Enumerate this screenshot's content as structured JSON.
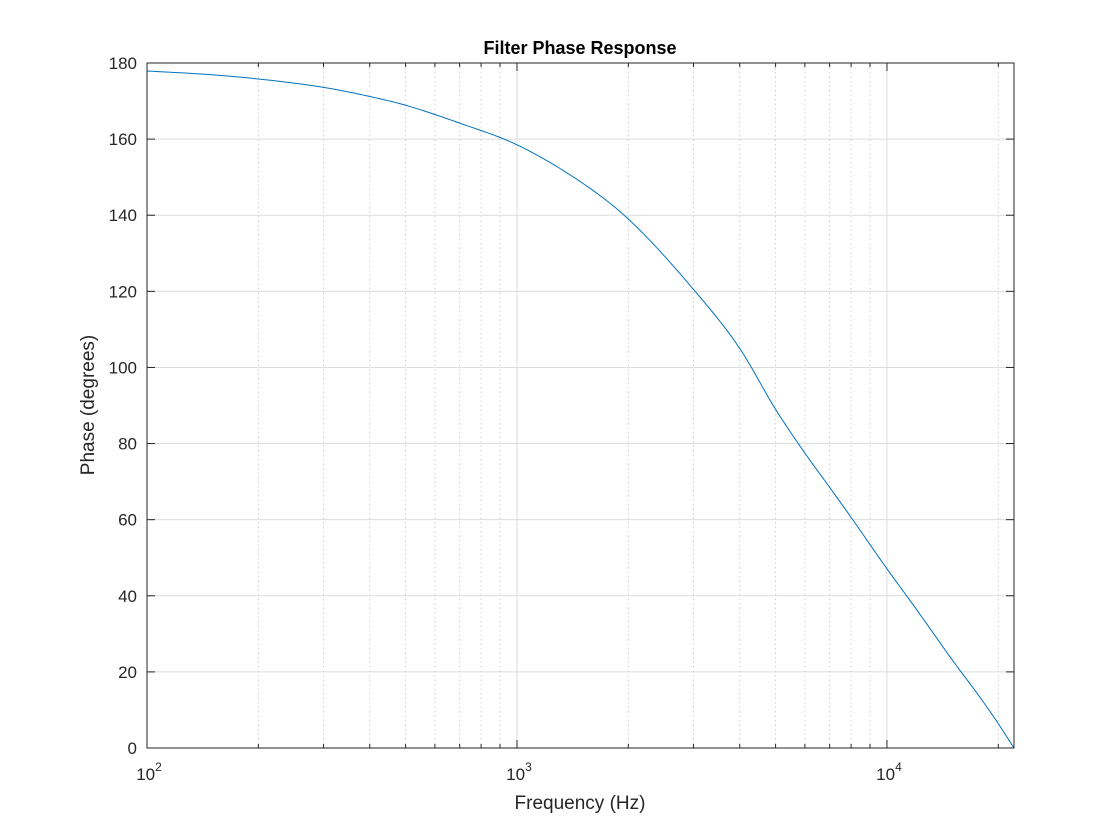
{
  "chart_data": {
    "type": "line",
    "title": "Filter Phase Response",
    "xlabel": "Frequency (Hz)",
    "ylabel": "Phase (degrees)",
    "xscale": "log",
    "xlim": [
      100,
      22050
    ],
    "ylim": [
      0,
      180
    ],
    "grid": true,
    "x_ticks": [
      {
        "base": "10",
        "exp": "2",
        "value": 100
      },
      {
        "base": "10",
        "exp": "3",
        "value": 1000
      },
      {
        "base": "10",
        "exp": "4",
        "value": 10000
      }
    ],
    "y_ticks": [
      0,
      20,
      40,
      60,
      80,
      100,
      120,
      140,
      160,
      180
    ],
    "series": [
      {
        "color": "#0072bd",
        "x": [
          100,
          150,
          200,
          300,
          400,
          500,
          700,
          1000,
          1500,
          2000,
          3000,
          4000,
          5000,
          6000,
          7000,
          8000,
          10000,
          12000,
          15000,
          18000,
          20000,
          22050
        ],
        "y": [
          177.9,
          176.9,
          175.8,
          173.6,
          171.2,
          168.9,
          164.2,
          158.5,
          148.5,
          139.0,
          120.5,
          105.0,
          89.0,
          77.5,
          68.5,
          60.6,
          47.1,
          36.5,
          23.2,
          12.8,
          6.4,
          0
        ]
      }
    ]
  }
}
